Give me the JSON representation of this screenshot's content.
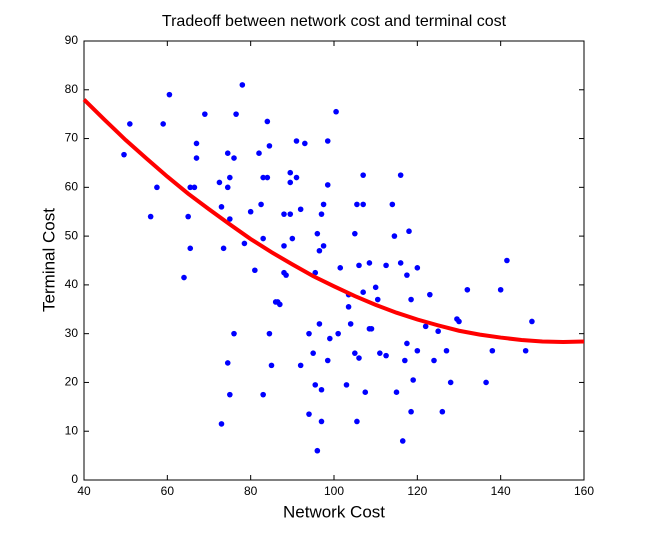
{
  "chart_data": {
    "type": "scatter",
    "title": "Tradeoff between network cost and terminal cost",
    "x_label": "Network Cost",
    "y_label": "Terminal Cost",
    "xlim": [
      40,
      160
    ],
    "ylim": [
      0,
      90
    ],
    "xticks": [
      40,
      60,
      80,
      100,
      120,
      140,
      160
    ],
    "yticks": [
      0,
      10,
      20,
      30,
      40,
      50,
      60,
      70,
      80,
      90
    ],
    "series": [
      {
        "color": "#0000ff",
        "style": "markers",
        "x": [
          49.6,
          51,
          56,
          57.5,
          59,
          60.5,
          64,
          65,
          65.5,
          65.5,
          66.5,
          67,
          67,
          69,
          72.5,
          73,
          73.5,
          73,
          74.5,
          74.5,
          74.5,
          75,
          75,
          75,
          76,
          76,
          76.5,
          78,
          78.5,
          80,
          81,
          82,
          82.5,
          83,
          83,
          83,
          84,
          84,
          84.5,
          84.5,
          85,
          86,
          86.5,
          87,
          88,
          88,
          88,
          88.5,
          89.5,
          89.5,
          89.5,
          90,
          91,
          91,
          92,
          92,
          93,
          94,
          94,
          95,
          95.5,
          95.5,
          96,
          96,
          96.5,
          96.5,
          97,
          97,
          97,
          97.5,
          97.5,
          98.5,
          98.5,
          98.5,
          99,
          100.5,
          101,
          101.5,
          103,
          103.5,
          103.5,
          104,
          105,
          105,
          105.5,
          105.5,
          106,
          106,
          107,
          107,
          107,
          107.5,
          108.5,
          108.5,
          109,
          110,
          110.5,
          111,
          112.5,
          112.5,
          114,
          114.5,
          115,
          116,
          116,
          116.5,
          117,
          117.5,
          117.5,
          118,
          118.5,
          118.5,
          119,
          120,
          120,
          122,
          123,
          124,
          125,
          126,
          127,
          128,
          129.5,
          130,
          132,
          136.5,
          138,
          140,
          141.5,
          146,
          147.5
        ],
        "values": [
          66.7,
          73,
          54,
          60,
          73,
          79,
          41.5,
          54,
          60,
          47.5,
          60,
          69,
          66,
          75,
          61,
          56,
          47.5,
          11.5,
          67,
          60,
          24,
          53.5,
          62,
          17.5,
          66,
          30,
          75,
          81,
          48.5,
          55,
          43,
          67,
          56.5,
          62,
          49.5,
          17.5,
          73.5,
          62,
          68.5,
          30,
          23.5,
          36.5,
          36.5,
          36,
          54.5,
          48,
          42.5,
          42,
          63,
          61,
          54.5,
          49.5,
          69.5,
          62,
          55.5,
          23.5,
          69,
          13.5,
          30,
          26,
          42.5,
          19.5,
          6,
          50.5,
          32,
          47,
          54.5,
          18.5,
          12,
          56.5,
          48,
          69.5,
          60.5,
          24.5,
          29,
          75.5,
          30,
          43.5,
          19.5,
          38,
          35.5,
          32,
          50.5,
          26,
          12,
          56.5,
          44,
          25,
          56.5,
          38.5,
          62.5,
          18,
          44.5,
          31,
          31,
          39.5,
          37,
          26,
          44,
          25.5,
          56.5,
          50,
          18,
          62.5,
          44.5,
          8,
          24.5,
          42,
          28,
          51,
          37,
          14,
          20.5,
          43.5,
          26.5,
          31.5,
          38,
          24.5,
          30.5,
          14,
          26.5,
          20,
          33,
          32.5,
          39,
          20,
          26.5,
          39,
          45,
          26.5,
          32.5
        ]
      },
      {
        "color": "#ff0000",
        "style": "line",
        "x": [
          40,
          45,
          50,
          55,
          60,
          65,
          70,
          75,
          80,
          85,
          90,
          95,
          100,
          105,
          110,
          115,
          120,
          125,
          130,
          135,
          140,
          145,
          150,
          155,
          160
        ],
        "values": [
          78.0,
          73.8,
          69.7,
          65.9,
          62.2,
          58.7,
          55.5,
          52.4,
          49.4,
          46.7,
          44.2,
          41.8,
          39.7,
          37.7,
          35.9,
          34.3,
          32.9,
          31.7,
          30.6,
          29.8,
          29.2,
          28.7,
          28.4,
          28.3,
          28.4
        ]
      }
    ]
  }
}
